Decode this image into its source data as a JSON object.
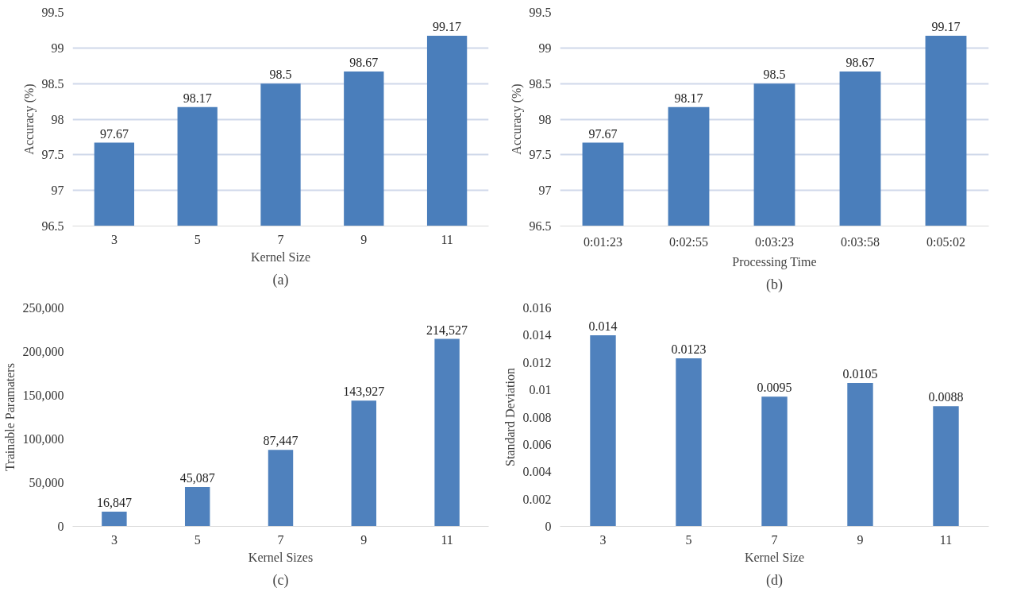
{
  "chart_data": [
    {
      "type": "bar",
      "categories": [
        "3",
        "5",
        "7",
        "9",
        "11"
      ],
      "values": [
        97.67,
        98.17,
        98.5,
        98.67,
        99.17
      ],
      "color": "#4a7ebb",
      "xlabel": "Kernel Size",
      "ylabel": "Accuracy (%)",
      "ylim": [
        96.5,
        99.5
      ],
      "yticks": [
        96.5,
        97,
        97.5,
        98,
        98.5,
        99,
        99.5
      ],
      "grid": "y",
      "data_labels": true,
      "annotations": [
        "(a)"
      ]
    },
    {
      "type": "bar",
      "categories": [
        "0:01:23",
        "0:02:55",
        "0:03:23",
        "0:03:58",
        "0:05:02"
      ],
      "values": [
        97.67,
        98.17,
        98.5,
        98.67,
        99.17
      ],
      "color": "#4a7ebb",
      "xlabel": "Processing Time",
      "ylabel": "Accuracy (%)",
      "ylim": [
        96.5,
        99.5
      ],
      "yticks": [
        96.5,
        97,
        97.5,
        98,
        98.5,
        99,
        99.5
      ],
      "grid": "y",
      "data_labels": true,
      "annotations": [
        "(b)"
      ]
    },
    {
      "type": "bar",
      "categories": [
        "3",
        "5",
        "7",
        "9",
        "11"
      ],
      "values": [
        16847,
        45087,
        87447,
        143927,
        214527
      ],
      "value_labels": [
        "16,847",
        "45,087",
        "87,447",
        "143,927",
        "214,527"
      ],
      "color": "#4f81bd",
      "xlabel": "Kernel Sizes",
      "ylabel": "Trainable Paramaters",
      "ylim": [
        0,
        250000
      ],
      "yticks": [
        0,
        {
          "value": 50000,
          "label": "50,000"
        },
        {
          "value": 100000,
          "label": "100,000"
        },
        {
          "value": 150000,
          "label": "150,000"
        },
        {
          "value": 200000,
          "label": "200,000"
        },
        {
          "value": 250000,
          "label": "250,000"
        }
      ],
      "annotations": [
        "(c)"
      ]
    },
    {
      "type": "bar",
      "categories": [
        "3",
        "5",
        "7",
        "9",
        "11"
      ],
      "values": [
        0.014,
        0.0123,
        0.0095,
        0.0105,
        0.0088
      ],
      "color": "#4f81bd",
      "xlabel": "Kernel Size",
      "ylabel": "Standard Deviation",
      "ylim": [
        0,
        0.016
      ],
      "yticks": [
        0,
        0.002,
        0.004,
        0.006,
        0.008,
        0.01,
        0.012,
        0.014,
        0.016
      ],
      "data_labels": true,
      "annotations": [
        "(d)"
      ]
    }
  ]
}
